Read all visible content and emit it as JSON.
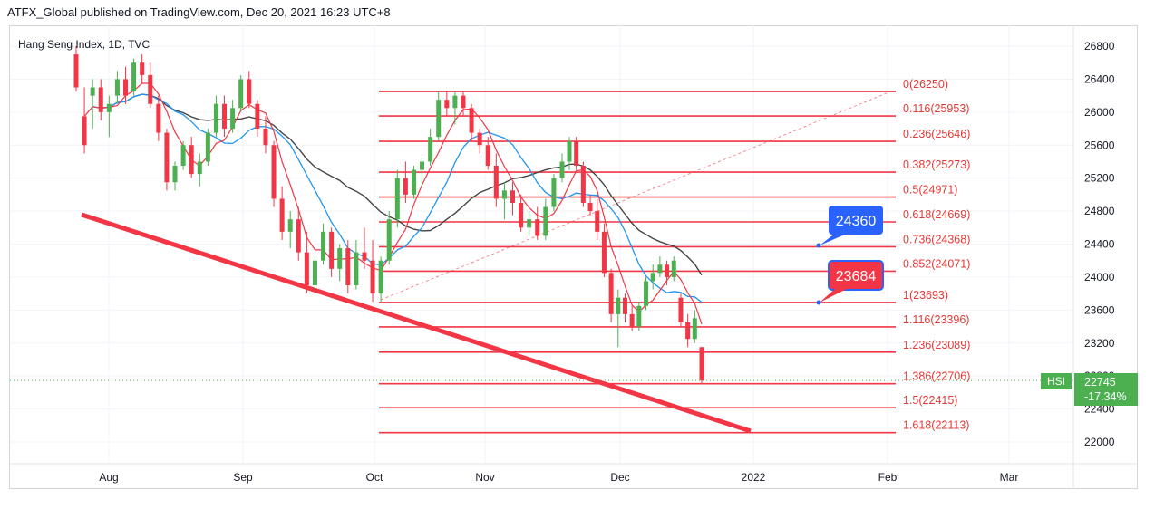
{
  "header": {
    "published_by": "ATFX_Global published on TradingView.com, Dec 20, 2021 16:23 UTC+8"
  },
  "symbol_title": "Hang Seng Index, 1D, TVC",
  "price_badge": {
    "symbol": "HSI",
    "price": "22745",
    "change": "-17.34%"
  },
  "callouts": [
    {
      "label": "24360",
      "color": "#2962ff"
    },
    {
      "label": "23684",
      "color": "#f23645"
    }
  ],
  "colors": {
    "up": "#4caf50",
    "down": "#f23645",
    "fib": "#f23645",
    "sma_fast": "#f23645",
    "sma_mid": "#2196f3",
    "sma_slow": "#444444",
    "trend": "#f23645"
  },
  "chart_data": {
    "type": "candlestick",
    "y_axis": {
      "range": [
        21800,
        26950
      ],
      "ticks": [
        22000,
        22400,
        22800,
        23200,
        23600,
        24000,
        24400,
        24800,
        25200,
        25600,
        26000,
        26400,
        26800
      ]
    },
    "x_axis": {
      "labels": [
        "Aug",
        "Sep",
        "Oct",
        "Nov",
        "Dec",
        "2022",
        "Feb",
        "Mar"
      ]
    },
    "fibonacci": [
      {
        "level": "0",
        "price": 26250,
        "label": "0(26250)"
      },
      {
        "level": "0.116",
        "price": 25953,
        "label": "0.116(25953)"
      },
      {
        "level": "0.236",
        "price": 25646,
        "label": "0.236(25646)"
      },
      {
        "level": "0.382",
        "price": 25273,
        "label": "0.382(25273)"
      },
      {
        "level": "0.5",
        "price": 24971,
        "label": "0.5(24971)"
      },
      {
        "level": "0.618",
        "price": 24669,
        "label": "0.618(24669)"
      },
      {
        "level": "0.736",
        "price": 24368,
        "label": "0.736(24368)"
      },
      {
        "level": "0.852",
        "price": 24071,
        "label": "0.852(24071)"
      },
      {
        "level": "1",
        "price": 23693,
        "label": "1(23693)"
      },
      {
        "level": "1.116",
        "price": 23396,
        "label": "1.116(23396)"
      },
      {
        "level": "1.236",
        "price": 23089,
        "label": "1.236(23089)"
      },
      {
        "level": "1.386",
        "price": 22706,
        "label": "1.386(22706)"
      },
      {
        "level": "1.5",
        "price": 22415,
        "label": "1.5(22415)"
      },
      {
        "level": "1.618",
        "price": 22113,
        "label": "1.618(22113)"
      }
    ],
    "last_price": 22745,
    "candles": [
      [
        26700,
        26800,
        26250,
        26300
      ],
      [
        25950,
        26300,
        25500,
        25600
      ],
      [
        26200,
        26400,
        25800,
        26300
      ],
      [
        26300,
        26400,
        25900,
        26000
      ],
      [
        26000,
        26200,
        25700,
        26100
      ],
      [
        26200,
        26500,
        26100,
        26400
      ],
      [
        26400,
        26550,
        26100,
        26200
      ],
      [
        26250,
        26650,
        26200,
        26600
      ],
      [
        26600,
        26700,
        26350,
        26450
      ],
      [
        26450,
        26600,
        26050,
        26100
      ],
      [
        26100,
        26200,
        25650,
        25750
      ],
      [
        25750,
        25800,
        25050,
        25150
      ],
      [
        25150,
        25400,
        25050,
        25350
      ],
      [
        25350,
        25650,
        25300,
        25600
      ],
      [
        25600,
        25700,
        25200,
        25250
      ],
      [
        25250,
        25500,
        25100,
        25400
      ],
      [
        25400,
        25800,
        25350,
        25750
      ],
      [
        25750,
        26200,
        25700,
        26100
      ],
      [
        26100,
        26200,
        25700,
        25800
      ],
      [
        25800,
        26150,
        25750,
        26050
      ],
      [
        26050,
        26450,
        26000,
        26400
      ],
      [
        26400,
        26500,
        26050,
        26100
      ],
      [
        26100,
        26150,
        25700,
        25800
      ],
      [
        25800,
        25950,
        25500,
        25600
      ],
      [
        25600,
        25650,
        24850,
        24950
      ],
      [
        24950,
        25100,
        24450,
        24550
      ],
      [
        24550,
        24800,
        24350,
        24700
      ],
      [
        24700,
        24850,
        24200,
        24300
      ],
      [
        24300,
        24550,
        23800,
        23900
      ],
      [
        23900,
        24250,
        23850,
        24200
      ],
      [
        24200,
        24650,
        24150,
        24550
      ],
      [
        24550,
        24600,
        24000,
        24100
      ],
      [
        24100,
        24400,
        23950,
        24350
      ],
      [
        24350,
        24450,
        23800,
        23900
      ],
      [
        23900,
        24450,
        23850,
        24300
      ],
      [
        24300,
        24600,
        24100,
        24200
      ],
      [
        24200,
        24450,
        23700,
        23800
      ],
      [
        23800,
        24250,
        23700,
        24200
      ],
      [
        24200,
        24800,
        24150,
        24700
      ],
      [
        24700,
        25300,
        24600,
        25200
      ],
      [
        25200,
        25400,
        24900,
        25000
      ],
      [
        25000,
        25350,
        24950,
        25300
      ],
      [
        25300,
        25450,
        25100,
        25400
      ],
      [
        25400,
        25800,
        25350,
        25700
      ],
      [
        25700,
        26250,
        25650,
        26150
      ],
      [
        26150,
        26250,
        25950,
        26050
      ],
      [
        26050,
        26250,
        25850,
        26200
      ],
      [
        26200,
        26250,
        25950,
        26050
      ],
      [
        26050,
        26100,
        25650,
        25750
      ],
      [
        25750,
        25800,
        25500,
        25600
      ],
      [
        25600,
        25700,
        25300,
        25350
      ],
      [
        25350,
        25500,
        24850,
        24950
      ],
      [
        24950,
        25150,
        24700,
        25050
      ],
      [
        25050,
        25150,
        24750,
        24900
      ],
      [
        24900,
        25000,
        24550,
        24600
      ],
      [
        24600,
        24800,
        24500,
        24700
      ],
      [
        24700,
        24850,
        24450,
        24500
      ],
      [
        24500,
        24950,
        24450,
        24850
      ],
      [
        24850,
        25250,
        24800,
        25200
      ],
      [
        25200,
        25500,
        25150,
        25400
      ],
      [
        25400,
        25700,
        25300,
        25650
      ],
      [
        25650,
        25700,
        25300,
        25350
      ],
      [
        25350,
        25400,
        24850,
        24900
      ],
      [
        24900,
        25000,
        24750,
        24800
      ],
      [
        24800,
        24950,
        24450,
        24550
      ],
      [
        24550,
        24650,
        24000,
        24050
      ],
      [
        24050,
        24100,
        23450,
        23550
      ],
      [
        23550,
        23850,
        23150,
        23750
      ],
      [
        23750,
        23800,
        23450,
        23550
      ],
      [
        23550,
        23650,
        23350,
        23400
      ],
      [
        23400,
        23700,
        23350,
        23650
      ],
      [
        23650,
        24000,
        23600,
        23950
      ],
      [
        23950,
        24150,
        23850,
        24050
      ],
      [
        24050,
        24250,
        24000,
        24150
      ],
      [
        24150,
        24200,
        23900,
        24000
      ],
      [
        24000,
        24250,
        23950,
        24200
      ],
      [
        23750,
        23800,
        23400,
        23450
      ],
      [
        23450,
        23550,
        23150,
        23250
      ],
      [
        23250,
        23600,
        23200,
        23500
      ],
      [
        23150,
        23150,
        22700,
        22745
      ]
    ],
    "candle_x_positions": [
      84,
      90,
      98,
      104,
      110,
      116,
      122,
      128,
      134,
      140,
      146,
      152,
      158,
      164,
      170,
      176,
      182,
      188,
      194,
      200,
      206,
      212,
      218,
      224,
      230,
      236,
      242,
      248,
      254,
      260,
      266,
      272,
      278,
      284,
      290,
      296,
      302,
      308,
      314,
      320,
      326,
      332,
      338,
      344,
      350,
      356,
      362,
      368,
      374,
      380,
      386,
      392,
      398,
      404,
      410,
      416,
      422,
      428,
      434,
      440,
      446,
      452,
      458,
      464,
      470,
      476,
      482,
      488,
      494,
      500,
      506,
      512,
      518,
      524,
      530,
      536,
      542,
      548,
      554,
      560
    ]
  }
}
